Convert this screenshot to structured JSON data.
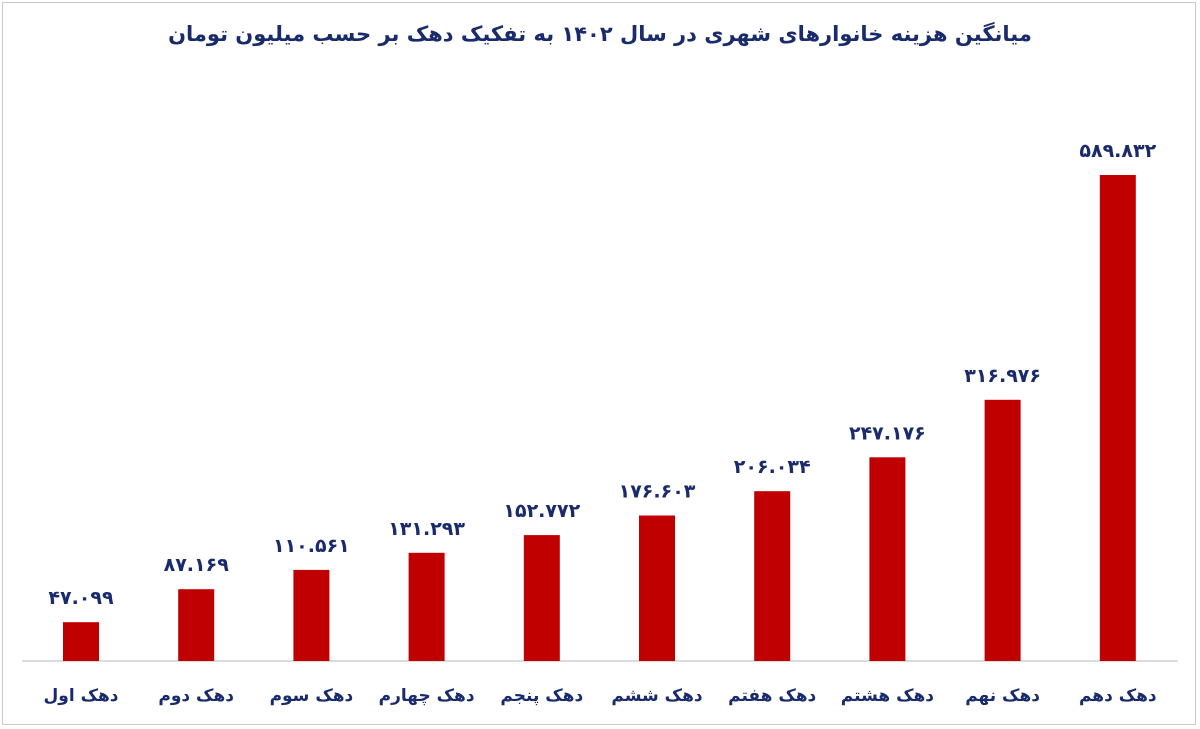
{
  "chart_data": {
    "type": "bar",
    "title": "میانگین هزینه خانوارهای شهری در سال ۱۴۰۲ به تفکیک دهک بر حسب میلیون تومان",
    "categories": [
      "دهک اول",
      "دهک دوم",
      "دهک سوم",
      "دهک چهارم",
      "دهک پنجم",
      "دهک ششم",
      "دهک هفتم",
      "دهک هشتم",
      "دهک نهم",
      "دهک دهم"
    ],
    "values": [
      47.099,
      87.169,
      110.561,
      131.293,
      152.772,
      176.603,
      206.034,
      247.176,
      316.976,
      589.832
    ],
    "value_labels": [
      "۴۷.۰۹۹",
      "۸۷.۱۶۹",
      "۱۱۰.۵۶۱",
      "۱۳۱.۲۹۳",
      "۱۵۲.۷۷۲",
      "۱۷۶.۶۰۳",
      "۲۰۶.۰۳۴",
      "۲۴۷.۱۷۶",
      "۳۱۶.۹۷۶",
      "۵۸۹.۸۳۲"
    ],
    "ylim": [
      0,
      589.832
    ],
    "grid": false,
    "legend": "none",
    "bar_color": "#c00000",
    "text_color": "#1a2b6b"
  }
}
